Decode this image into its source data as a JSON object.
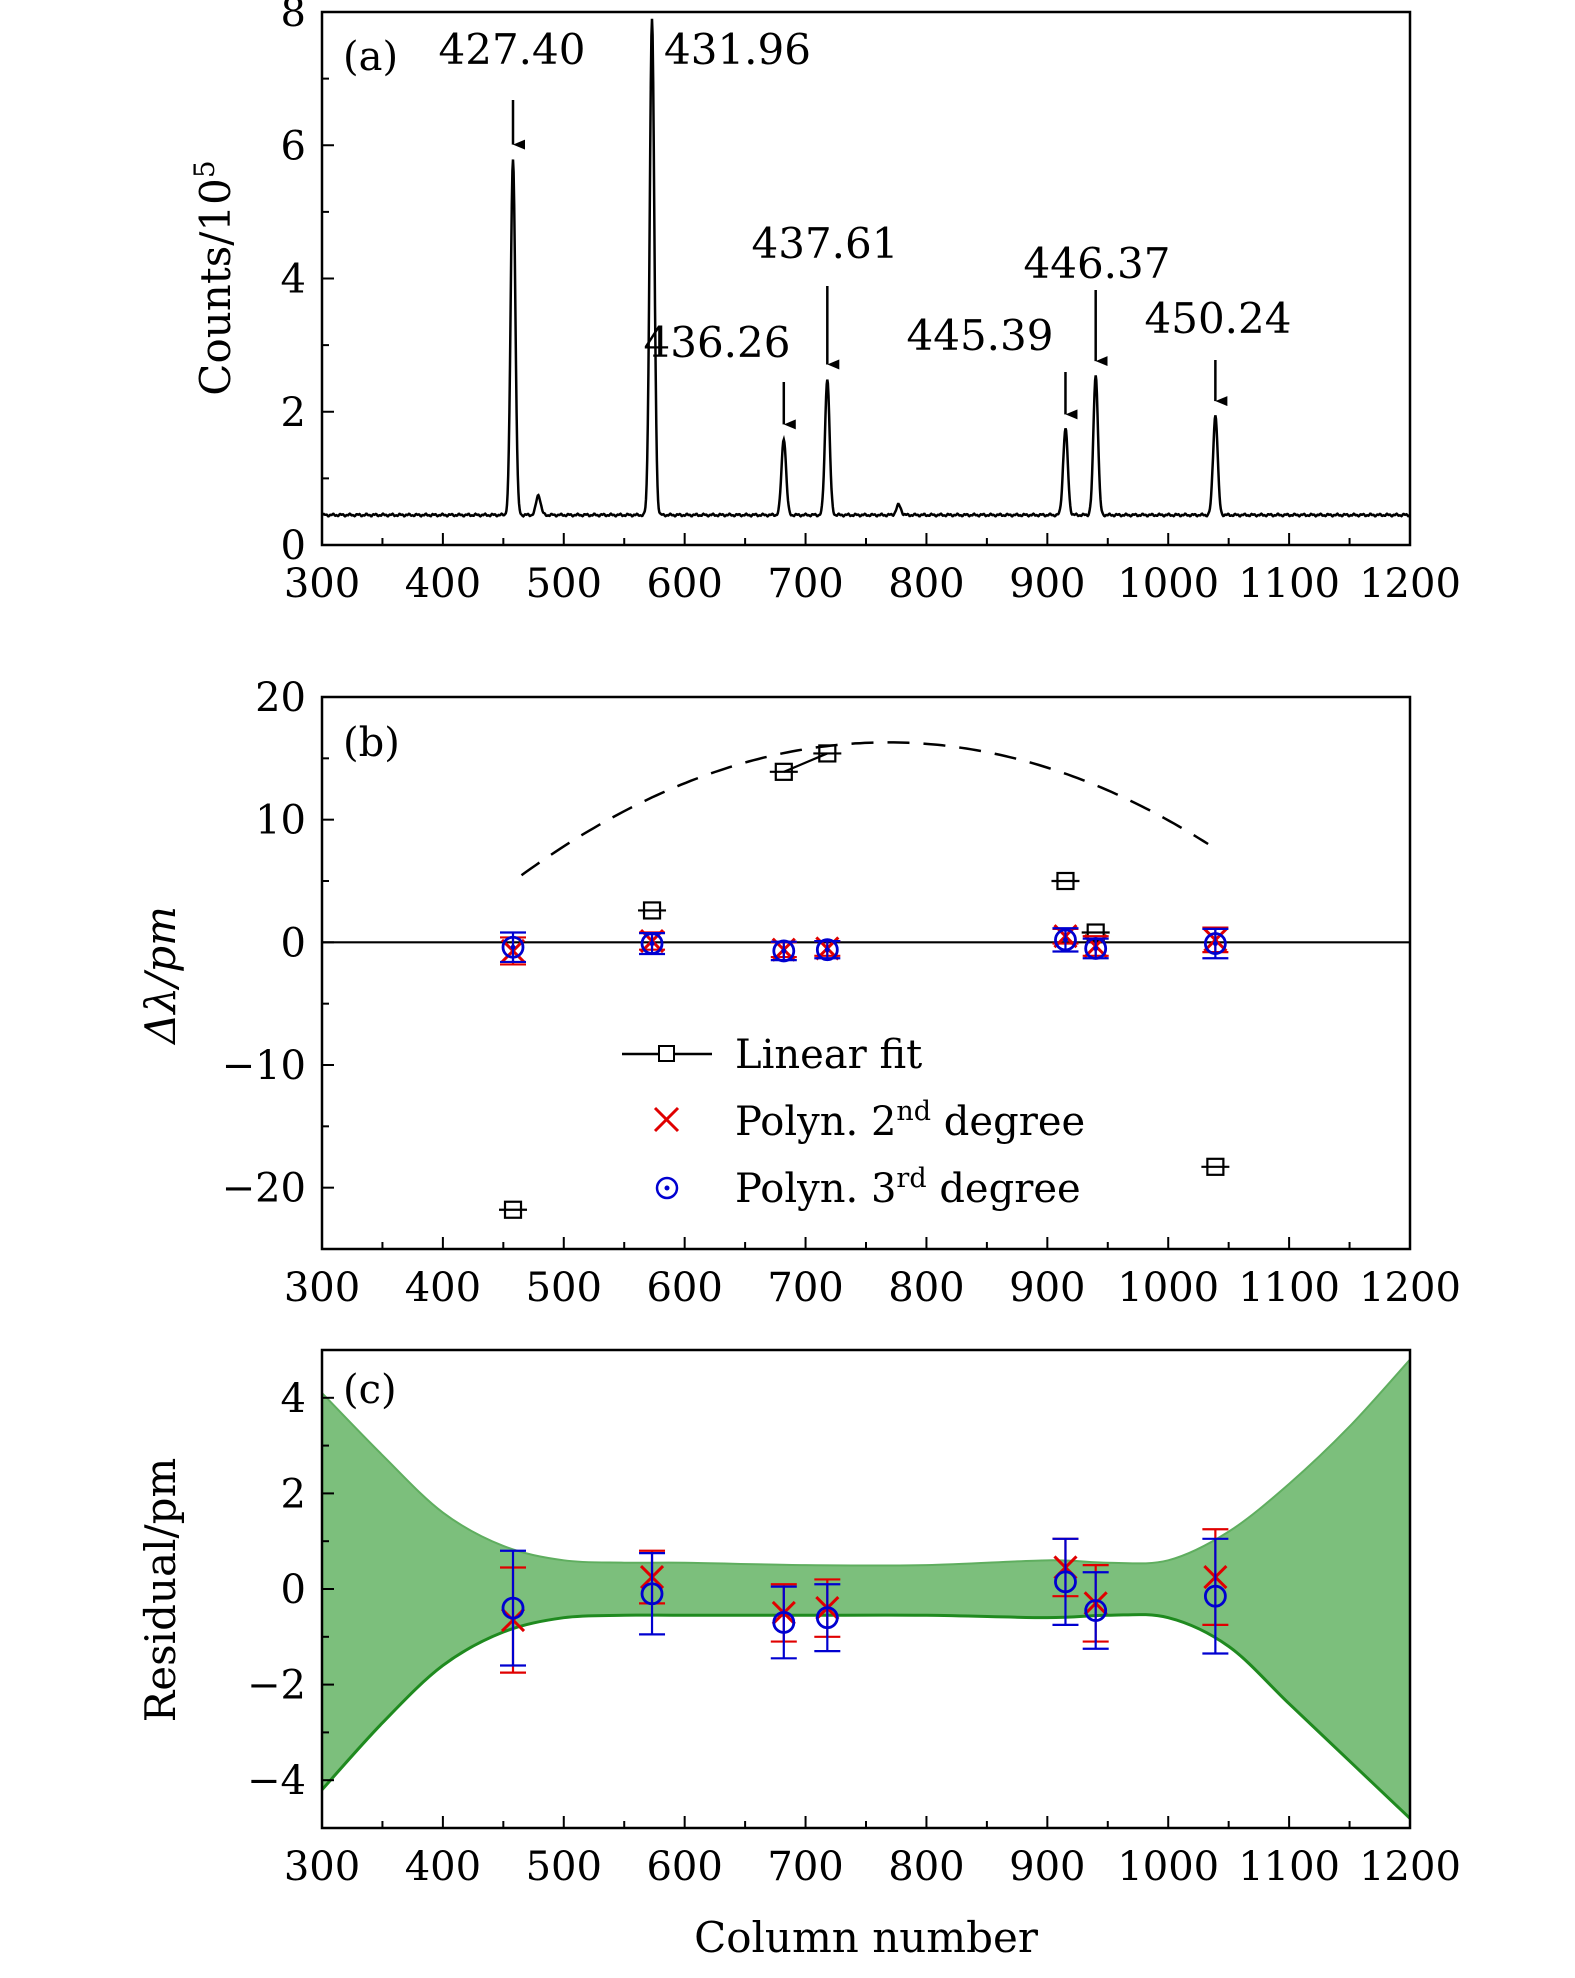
{
  "chart_data": [
    {
      "type": "line",
      "panel_label": "(a)",
      "xlabel": "",
      "ylabel": "Counts/10",
      "ylabel_superscript": "5",
      "xlim": [
        300,
        1200
      ],
      "ylim": [
        0,
        8
      ],
      "x_ticks": [
        300,
        400,
        500,
        600,
        700,
        800,
        900,
        1000,
        1100,
        1200
      ],
      "y_ticks": [
        0,
        2,
        4,
        6,
        8
      ],
      "baseline": 0.45,
      "peaks": [
        {
          "x": 458,
          "height": 5.8,
          "label": "427.40"
        },
        {
          "x": 479,
          "height": 0.75,
          "label": ""
        },
        {
          "x": 573,
          "height": 7.9,
          "label": "431.96"
        },
        {
          "x": 682,
          "height": 1.6,
          "label": "436.26"
        },
        {
          "x": 718,
          "height": 2.5,
          "label": "437.61"
        },
        {
          "x": 777,
          "height": 0.6,
          "label": ""
        },
        {
          "x": 915,
          "height": 1.75,
          "label": "445.39"
        },
        {
          "x": 940,
          "height": 2.55,
          "label": "446.37"
        },
        {
          "x": 1039,
          "height": 1.95,
          "label": "450.24"
        }
      ]
    },
    {
      "type": "scatter",
      "panel_label": "(b)",
      "ylabel": "Δλ/pm",
      "xlim": [
        300,
        1200
      ],
      "ylim": [
        -25,
        20
      ],
      "x_ticks": [
        300,
        400,
        500,
        600,
        700,
        800,
        900,
        1000,
        1100,
        1200
      ],
      "y_ticks": [
        20,
        10,
        0,
        -10,
        -20
      ],
      "y_tick_labels": [
        "20",
        "10",
        "0",
        "−10",
        "−20"
      ],
      "x": [
        458,
        573,
        682,
        718,
        915,
        940,
        1039
      ],
      "series": [
        {
          "name": "Linear fit",
          "marker": "square",
          "color": "#000000",
          "values": [
            -21.8,
            2.6,
            13.9,
            15.4,
            5.0,
            0.8,
            -18.3
          ]
        },
        {
          "name": "Polyn. 2",
          "name_superscript": "nd",
          "name_suffix": " degree",
          "marker": "x",
          "color": "#e00000",
          "values": [
            -0.7,
            0.1,
            -0.6,
            -0.5,
            0.5,
            -0.3,
            0.2
          ],
          "errors": [
            1.1,
            0.7,
            0.6,
            0.6,
            0.6,
            0.8,
            1.0
          ]
        },
        {
          "name": "Polyn. 3",
          "name_superscript": "rd",
          "name_suffix": " degree",
          "marker": "circle",
          "color": "#0000d0",
          "values": [
            -0.4,
            -0.1,
            -0.7,
            -0.6,
            0.2,
            -0.5,
            -0.1
          ],
          "errors": [
            1.2,
            0.85,
            0.75,
            0.7,
            0.95,
            0.8,
            1.2
          ]
        }
      ],
      "fit_curve": {
        "vertex_x": 768,
        "vertex_y": 16.3,
        "coef": -0.000118,
        "x_start": 465,
        "x_end": 1035
      }
    },
    {
      "type": "scatter",
      "panel_label": "(c)",
      "xlabel": "Column number",
      "ylabel": "Residual/pm",
      "xlim": [
        300,
        1200
      ],
      "ylim": [
        -5,
        5
      ],
      "x_ticks": [
        300,
        400,
        500,
        600,
        700,
        800,
        900,
        1000,
        1100,
        1200
      ],
      "y_ticks": [
        4,
        2,
        0,
        -2,
        -4
      ],
      "y_tick_labels": [
        "4",
        "2",
        "0",
        "−2",
        "−4"
      ],
      "x": [
        458,
        573,
        682,
        718,
        915,
        940,
        1039
      ],
      "series": [
        {
          "name": "Polyn. 2nd degree",
          "marker": "x",
          "color": "#e00000",
          "values": [
            -0.65,
            0.25,
            -0.5,
            -0.4,
            0.45,
            -0.3,
            0.25
          ],
          "errors": [
            1.1,
            0.55,
            0.6,
            0.6,
            0.6,
            0.8,
            1.0
          ]
        },
        {
          "name": "Polyn. 3rd degree",
          "marker": "circle",
          "color": "#0000d0",
          "values": [
            -0.4,
            -0.1,
            -0.7,
            -0.6,
            0.15,
            -0.45,
            -0.15
          ],
          "errors": [
            1.2,
            0.85,
            0.75,
            0.7,
            0.9,
            0.8,
            1.2
          ]
        }
      ],
      "confidence_band": {
        "fill": "#7cbf7c",
        "edge": "#1f8a1f",
        "x": [
          300,
          350,
          400,
          450,
          500,
          550,
          600,
          700,
          800,
          900,
          950,
          1000,
          1050,
          1100,
          1150,
          1200
        ],
        "upper": [
          4.1,
          2.8,
          1.6,
          0.9,
          0.6,
          0.55,
          0.55,
          0.5,
          0.5,
          0.6,
          0.55,
          0.6,
          1.2,
          2.2,
          3.4,
          4.8
        ],
        "lower": [
          -4.2,
          -2.8,
          -1.6,
          -0.9,
          -0.6,
          -0.55,
          -0.55,
          -0.55,
          -0.55,
          -0.6,
          -0.55,
          -0.6,
          -1.2,
          -2.4,
          -3.6,
          -4.8
        ]
      }
    }
  ]
}
